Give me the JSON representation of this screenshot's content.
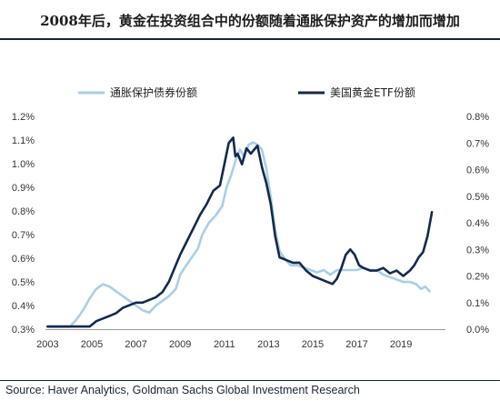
{
  "title": "2008年后，黄金在投资组合中的份额随着通胀保护资产的增加而增加",
  "source": "Source: Haver Analytics, Goldman Sachs Global Investment Research",
  "chart_data": {
    "type": "line",
    "xlabel": "",
    "ylabel_left": "",
    "ylabel_right": "",
    "x_ticks": [
      "2003",
      "2005",
      "2007",
      "2009",
      "2011",
      "2013",
      "2015",
      "2017",
      "2019"
    ],
    "y_left_ticks": [
      "0.3%",
      "0.4%",
      "0.5%",
      "0.6%",
      "0.7%",
      "0.8%",
      "0.9%",
      "1.0%",
      "1.1%",
      "1.2%"
    ],
    "y_right_ticks": [
      "0.0%",
      "0.1%",
      "0.2%",
      "0.3%",
      "0.4%",
      "0.5%",
      "0.6%",
      "0.7%",
      "0.8%"
    ],
    "xlim": [
      2002.9,
      2020.6
    ],
    "ylim_left": [
      0.3,
      1.2
    ],
    "ylim_right": [
      0.0,
      0.8
    ],
    "grid": false,
    "legend_position": "top",
    "series": [
      {
        "name": "通胀保护债券份额",
        "axis": "left",
        "color": "#a9cfe6",
        "x": [
          2003.0,
          2003.5,
          2004.0,
          2004.3,
          2004.6,
          2004.9,
          2005.2,
          2005.5,
          2005.8,
          2006.1,
          2006.4,
          2006.7,
          2007.0,
          2007.3,
          2007.6,
          2007.9,
          2008.2,
          2008.5,
          2008.8,
          2009.0,
          2009.2,
          2009.5,
          2009.8,
          2010.0,
          2010.3,
          2010.6,
          2010.9,
          2011.1,
          2011.3,
          2011.5,
          2011.7,
          2011.9,
          2012.1,
          2012.3,
          2012.5,
          2012.7,
          2012.9,
          2013.1,
          2013.3,
          2013.5,
          2013.8,
          2014.0,
          2014.3,
          2014.6,
          2014.9,
          2015.2,
          2015.5,
          2015.8,
          2016.1,
          2016.4,
          2016.7,
          2017.0,
          2017.3,
          2017.6,
          2017.9,
          2018.2,
          2018.5,
          2018.8,
          2019.1,
          2019.4,
          2019.7,
          2019.9,
          2020.1,
          2020.3
        ],
        "y": [
          0.31,
          0.31,
          0.31,
          0.34,
          0.38,
          0.43,
          0.47,
          0.49,
          0.48,
          0.46,
          0.44,
          0.42,
          0.4,
          0.38,
          0.37,
          0.4,
          0.42,
          0.44,
          0.47,
          0.53,
          0.56,
          0.6,
          0.64,
          0.7,
          0.75,
          0.78,
          0.82,
          0.9,
          0.95,
          1.01,
          1.06,
          1.03,
          1.08,
          1.09,
          1.08,
          1.06,
          0.98,
          0.86,
          0.72,
          0.63,
          0.59,
          0.57,
          0.57,
          0.56,
          0.55,
          0.54,
          0.55,
          0.53,
          0.55,
          0.55,
          0.55,
          0.55,
          0.56,
          0.55,
          0.55,
          0.53,
          0.52,
          0.51,
          0.5,
          0.5,
          0.49,
          0.47,
          0.48,
          0.46
        ]
      },
      {
        "name": "美国黄金ETF份额",
        "axis": "right",
        "color": "#14294b",
        "x": [
          2003.0,
          2003.5,
          2004.0,
          2004.5,
          2004.9,
          2005.2,
          2005.5,
          2005.8,
          2006.1,
          2006.4,
          2006.7,
          2007.0,
          2007.3,
          2007.6,
          2007.9,
          2008.2,
          2008.5,
          2008.8,
          2009.0,
          2009.3,
          2009.6,
          2009.9,
          2010.2,
          2010.5,
          2010.8,
          2011.0,
          2011.2,
          2011.4,
          2011.5,
          2011.6,
          2011.8,
          2012.0,
          2012.2,
          2012.5,
          2012.7,
          2012.9,
          2013.1,
          2013.3,
          2013.5,
          2013.8,
          2014.1,
          2014.4,
          2014.7,
          2015.0,
          2015.3,
          2015.6,
          2015.9,
          2016.1,
          2016.3,
          2016.5,
          2016.7,
          2016.9,
          2017.1,
          2017.3,
          2017.6,
          2017.9,
          2018.2,
          2018.5,
          2018.8,
          2019.1,
          2019.4,
          2019.6,
          2019.8,
          2020.0,
          2020.2,
          2020.4
        ],
        "y": [
          0.01,
          0.01,
          0.01,
          0.01,
          0.01,
          0.03,
          0.04,
          0.05,
          0.06,
          0.08,
          0.09,
          0.1,
          0.1,
          0.11,
          0.12,
          0.14,
          0.18,
          0.24,
          0.28,
          0.33,
          0.38,
          0.43,
          0.47,
          0.52,
          0.54,
          0.62,
          0.7,
          0.72,
          0.65,
          0.66,
          0.62,
          0.68,
          0.66,
          0.69,
          0.61,
          0.55,
          0.47,
          0.35,
          0.27,
          0.26,
          0.25,
          0.25,
          0.22,
          0.2,
          0.19,
          0.18,
          0.17,
          0.19,
          0.23,
          0.28,
          0.3,
          0.28,
          0.24,
          0.23,
          0.22,
          0.22,
          0.23,
          0.21,
          0.22,
          0.2,
          0.22,
          0.24,
          0.27,
          0.29,
          0.35,
          0.44
        ]
      }
    ]
  }
}
